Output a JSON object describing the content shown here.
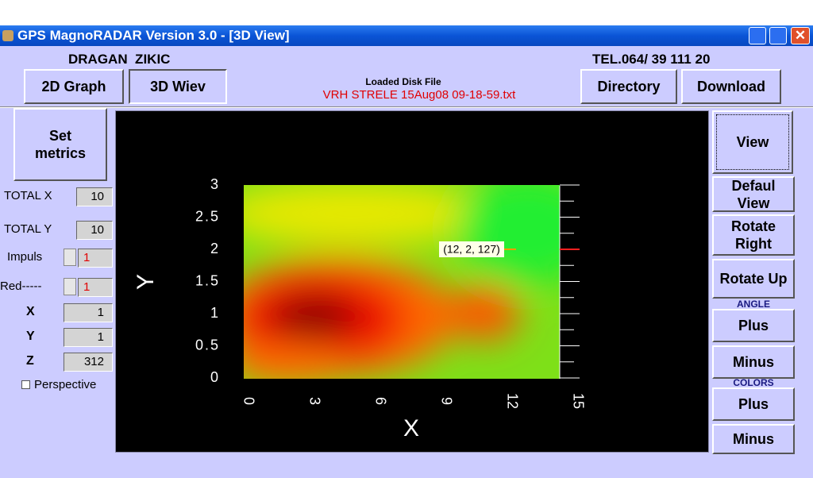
{
  "window": {
    "title": "GPS MagnoRADAR Version 3.0 - [3D View]"
  },
  "header": {
    "owner": "DRAGAN  ZIKIC",
    "phone": "TEL.064/ 39 111 20",
    "loaded_label": "Loaded Disk File",
    "loaded_file": "VRH STRELE 15Aug08 09-18-59.txt"
  },
  "toolbar": [
    "2D Graph",
    "3D Wiev",
    "Directory",
    "Download"
  ],
  "left_panel": {
    "set_metrics": "Set metrics",
    "fields": [
      {
        "label": "TOTAL X",
        "value": "10"
      },
      {
        "label": "TOTAL Y",
        "value": "10"
      },
      {
        "label": "Impuls",
        "value": "1"
      },
      {
        "label": "Red-----",
        "value": "1"
      },
      {
        "label": "X",
        "value": "1"
      },
      {
        "label": "Y",
        "value": "1"
      },
      {
        "label": "Z",
        "value": "312"
      }
    ],
    "perspective": "Perspective"
  },
  "plot": {
    "y_label": "Y",
    "x_label": "X",
    "yticks": [
      0,
      0.5,
      1,
      1.5,
      2,
      2.5,
      3
    ],
    "xticks": [
      0,
      3,
      6,
      9,
      12,
      15
    ],
    "annotation": "(12, 2, 127)"
  },
  "right_panel": {
    "view": "View",
    "default_view": "Defaul View",
    "rotate_right": "Rotate Right",
    "rotate_up": "Rotate Up",
    "angle": "ANGLE",
    "angle_plus": "Plus",
    "angle_minus": "Minus",
    "colors": "COLORS",
    "colors_plus": "Plus",
    "colors_minus": "Minus"
  }
}
